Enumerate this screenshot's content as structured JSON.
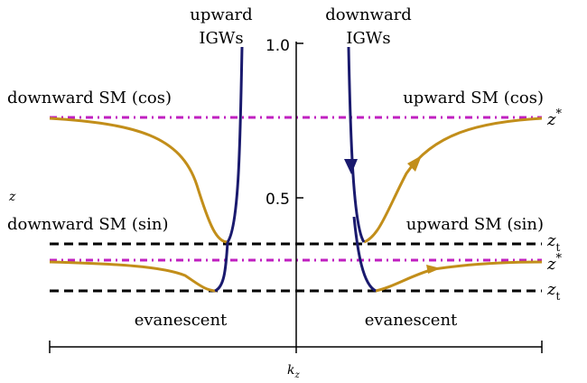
{
  "labels": {
    "upward_igws_1": "upward",
    "upward_igws_2": "IGWs",
    "downward_igws_1": "downward",
    "downward_igws_2": "IGWs",
    "downward_sm_cos": "downward SM (cos)",
    "upward_sm_cos": "upward SM (cos)",
    "downward_sm_sin": "downward SM (sin)",
    "upward_sm_sin": "upward SM (sin)",
    "evanescent_left": "evanescent",
    "evanescent_right": "evanescent",
    "z_star_upper": "z",
    "z_star_upper_sup": "*",
    "z_t_upper": "z",
    "z_t_upper_sub": "t",
    "z_star_lower": "z",
    "z_star_lower_sup": "*",
    "z_t_lower": "z",
    "z_t_lower_sub": "t"
  },
  "axes": {
    "ylabel": "z",
    "xlabel": "k",
    "xlabel_sub": "z",
    "ytick_1_0": "1.0",
    "ytick_0_5": "0.5"
  },
  "colors": {
    "igw": "#1a1a6e",
    "sm": "#c28e1a",
    "z_star_line": "#c020c0",
    "z_t_line": "#000000",
    "axis": "#000000"
  }
}
